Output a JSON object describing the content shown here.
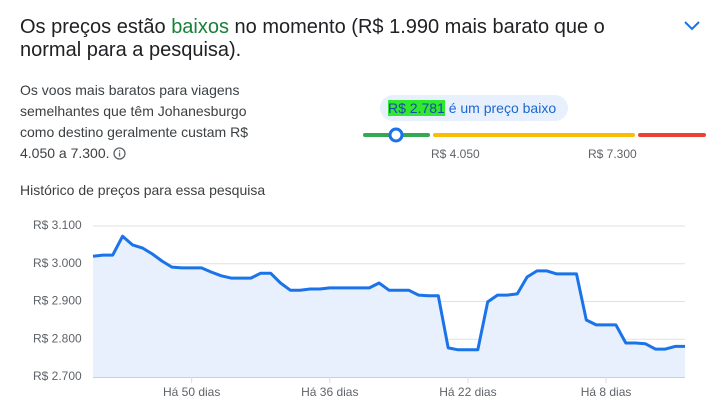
{
  "header": {
    "title_start": "Os preços estão ",
    "title_highlight": "baixos",
    "title_end": " no momento (R$ 1.990 mais barato que o normal para a pesquisa)."
  },
  "summary": {
    "text": "Os voos mais baratos para viagens semelhantes que têm Johanesburgo como destino geralmente custam R$ 4.050 a 7.300."
  },
  "price_badge": {
    "price": "R$ 2.781",
    "text": "é um preço baixo"
  },
  "price_range": {
    "low": "R$ 4.050",
    "high": "R$ 7.300"
  },
  "chart_data": {
    "type": "line",
    "title": "Histórico de preços para essa pesquisa",
    "x": [
      60,
      59,
      58,
      57,
      56,
      55,
      54,
      53,
      52,
      51,
      50,
      49,
      48,
      47,
      46,
      45,
      44,
      43,
      42,
      41,
      40,
      39,
      38,
      37,
      36,
      35,
      34,
      33,
      32,
      31,
      30,
      29,
      28,
      27,
      26,
      25,
      24,
      23,
      22,
      21,
      20,
      19,
      18,
      17,
      16,
      15,
      14,
      13,
      12,
      11,
      10,
      9,
      8,
      7,
      6,
      5,
      4,
      3,
      2,
      1,
      0
    ],
    "values": [
      3020,
      3023,
      3023,
      3073,
      3050,
      3042,
      3026,
      3007,
      2991,
      2989,
      2989,
      2989,
      2978,
      2968,
      2962,
      2962,
      2962,
      2975,
      2975,
      2949,
      2930,
      2930,
      2933,
      2933,
      2936,
      2936,
      2936,
      2936,
      2936,
      2949,
      2930,
      2930,
      2930,
      2917,
      2915,
      2915,
      2777,
      2772,
      2772,
      2772,
      2899,
      2917,
      2917,
      2920,
      2965,
      2981,
      2981,
      2973,
      2973,
      2973,
      2851,
      2838,
      2838,
      2838,
      2790,
      2790,
      2788,
      2774,
      2774,
      2781,
      2781
    ],
    "color": "#1a73e8",
    "xlim": [
      60,
      0
    ],
    "xticks": [
      {
        "value": 50,
        "label": "Há 50 dias"
      },
      {
        "value": 36,
        "label": "Há 36 dias"
      },
      {
        "value": 22,
        "label": "Há 22 dias"
      },
      {
        "value": 8,
        "label": "Há 8 dias"
      }
    ],
    "ylim": [
      2700,
      3100
    ],
    "yticks": [
      {
        "value": 2700,
        "label": "R$ 2.700"
      },
      {
        "value": 2800,
        "label": "R$ 2.800"
      },
      {
        "value": 2900,
        "label": "R$ 2.900"
      },
      {
        "value": 3000,
        "label": "R$ 3.000"
      },
      {
        "value": 3100,
        "label": "R$ 3.100"
      }
    ],
    "grid": true
  }
}
